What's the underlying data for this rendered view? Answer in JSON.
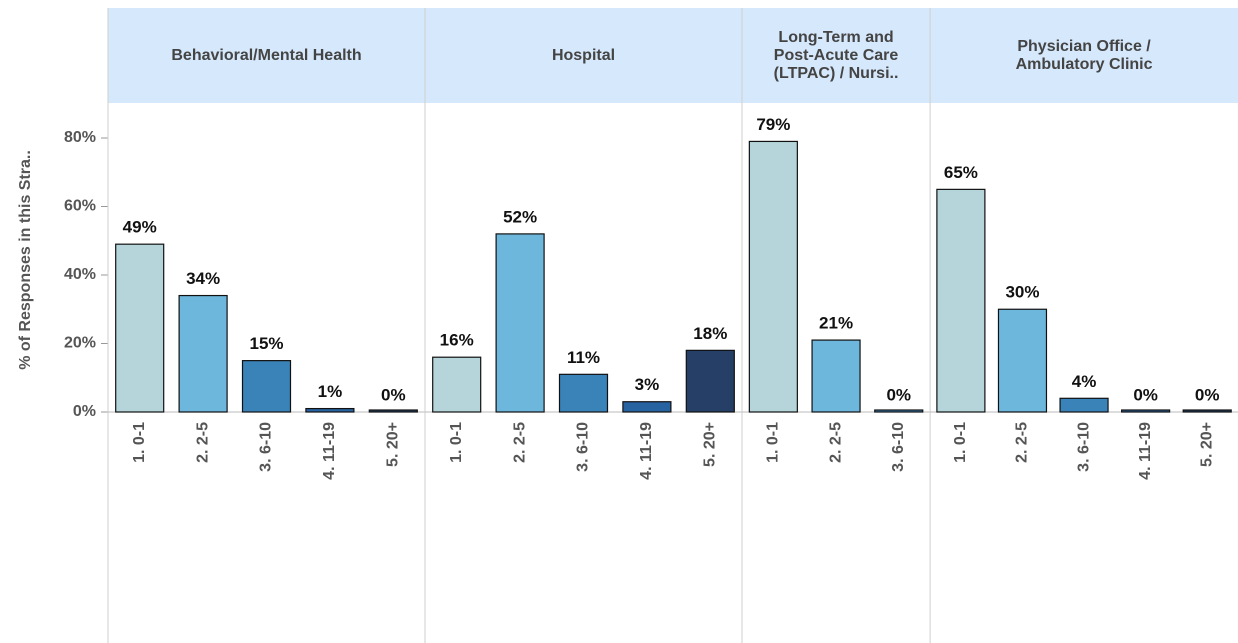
{
  "chart_data": {
    "type": "bar",
    "y_label": "% of Responses in this Stra..",
    "ylim": [
      0,
      80
    ],
    "yticks": [
      {
        "value": 0,
        "label": "0%"
      },
      {
        "value": 20,
        "label": "20%"
      },
      {
        "value": 40,
        "label": "40%"
      },
      {
        "value": 60,
        "label": "60%"
      },
      {
        "value": 80,
        "label": "80%"
      }
    ],
    "colors": [
      "#b5d5da",
      "#6db6dc",
      "#3a83b8",
      "#2763a1",
      "#253f66"
    ],
    "panels": [
      {
        "title_lines": [
          "Behavioral/Mental Health"
        ],
        "categories": [
          "1. 0-1",
          "2. 2-5",
          "3. 6-10",
          "4. 11-19",
          "5. 20+"
        ],
        "values": [
          49,
          34,
          15,
          1,
          0
        ],
        "value_labels": [
          "49%",
          "34%",
          "15%",
          "1%",
          "0%"
        ]
      },
      {
        "title_lines": [
          "Hospital"
        ],
        "categories": [
          "1. 0-1",
          "2. 2-5",
          "3. 6-10",
          "4. 11-19",
          "5. 20+"
        ],
        "values": [
          16,
          52,
          11,
          3,
          18
        ],
        "value_labels": [
          "16%",
          "52%",
          "11%",
          "3%",
          "18%"
        ]
      },
      {
        "title_lines": [
          "Long-Term and",
          "Post-Acute Care",
          "(LTPAC) / Nursi.."
        ],
        "categories": [
          "1. 0-1",
          "2. 2-5",
          "3. 6-10"
        ],
        "values": [
          79,
          21,
          0
        ],
        "value_labels": [
          "79%",
          "21%",
          "0%"
        ]
      },
      {
        "title_lines": [
          "Physician Office /",
          "Ambulatory Clinic"
        ],
        "categories": [
          "1. 0-1",
          "2. 2-5",
          "3. 6-10",
          "4. 11-19",
          "5. 20+"
        ],
        "values": [
          65,
          30,
          4,
          0,
          0
        ],
        "value_labels": [
          "65%",
          "30%",
          "4%",
          "0%",
          "0%"
        ]
      }
    ]
  }
}
